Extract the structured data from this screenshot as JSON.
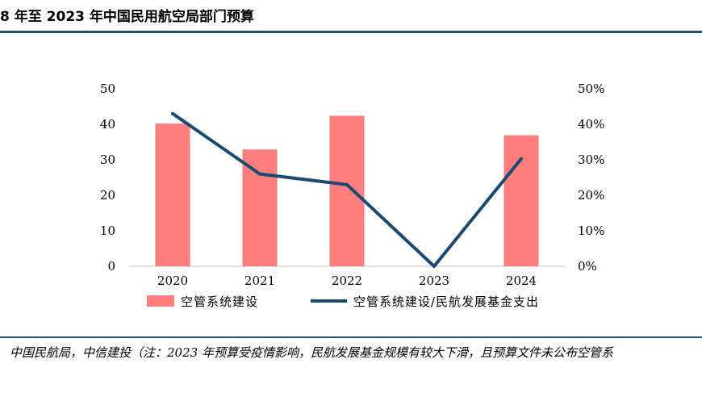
{
  "header": {
    "title": "8 年至 2023 年中国民用航空局部门预算"
  },
  "footer": {
    "source": "中国民航局，中信建投（注：2023 年预算受疫情影响，民航发展基金规模有较大下滑，且预算文件未公布空管系"
  },
  "colors": {
    "bar": "#ff7f7f",
    "line": "#1a4a72",
    "rule": "#1f4e79"
  },
  "chart_data": {
    "type": "bar",
    "categories": [
      "2020",
      "2021",
      "2022",
      "2023",
      "2024"
    ],
    "series": [
      {
        "name": "空管系统建设",
        "type": "bar",
        "axis": "left",
        "values": [
          40.2,
          32.9,
          42.4,
          null,
          36.9
        ]
      },
      {
        "name": "空管系统建设/民航发展基金支出",
        "type": "line",
        "axis": "right",
        "values": [
          43,
          26,
          23,
          0,
          30.3
        ]
      }
    ],
    "y_left": {
      "ylim": [
        0,
        50
      ],
      "ticks": [
        "0",
        "10",
        "20",
        "30",
        "40",
        "50"
      ]
    },
    "y_right": {
      "ylim": [
        0,
        50
      ],
      "ticks": [
        "0%",
        "10%",
        "20%",
        "30%",
        "40%",
        "50%"
      ]
    },
    "grid": false,
    "legend_position": "bottom"
  }
}
